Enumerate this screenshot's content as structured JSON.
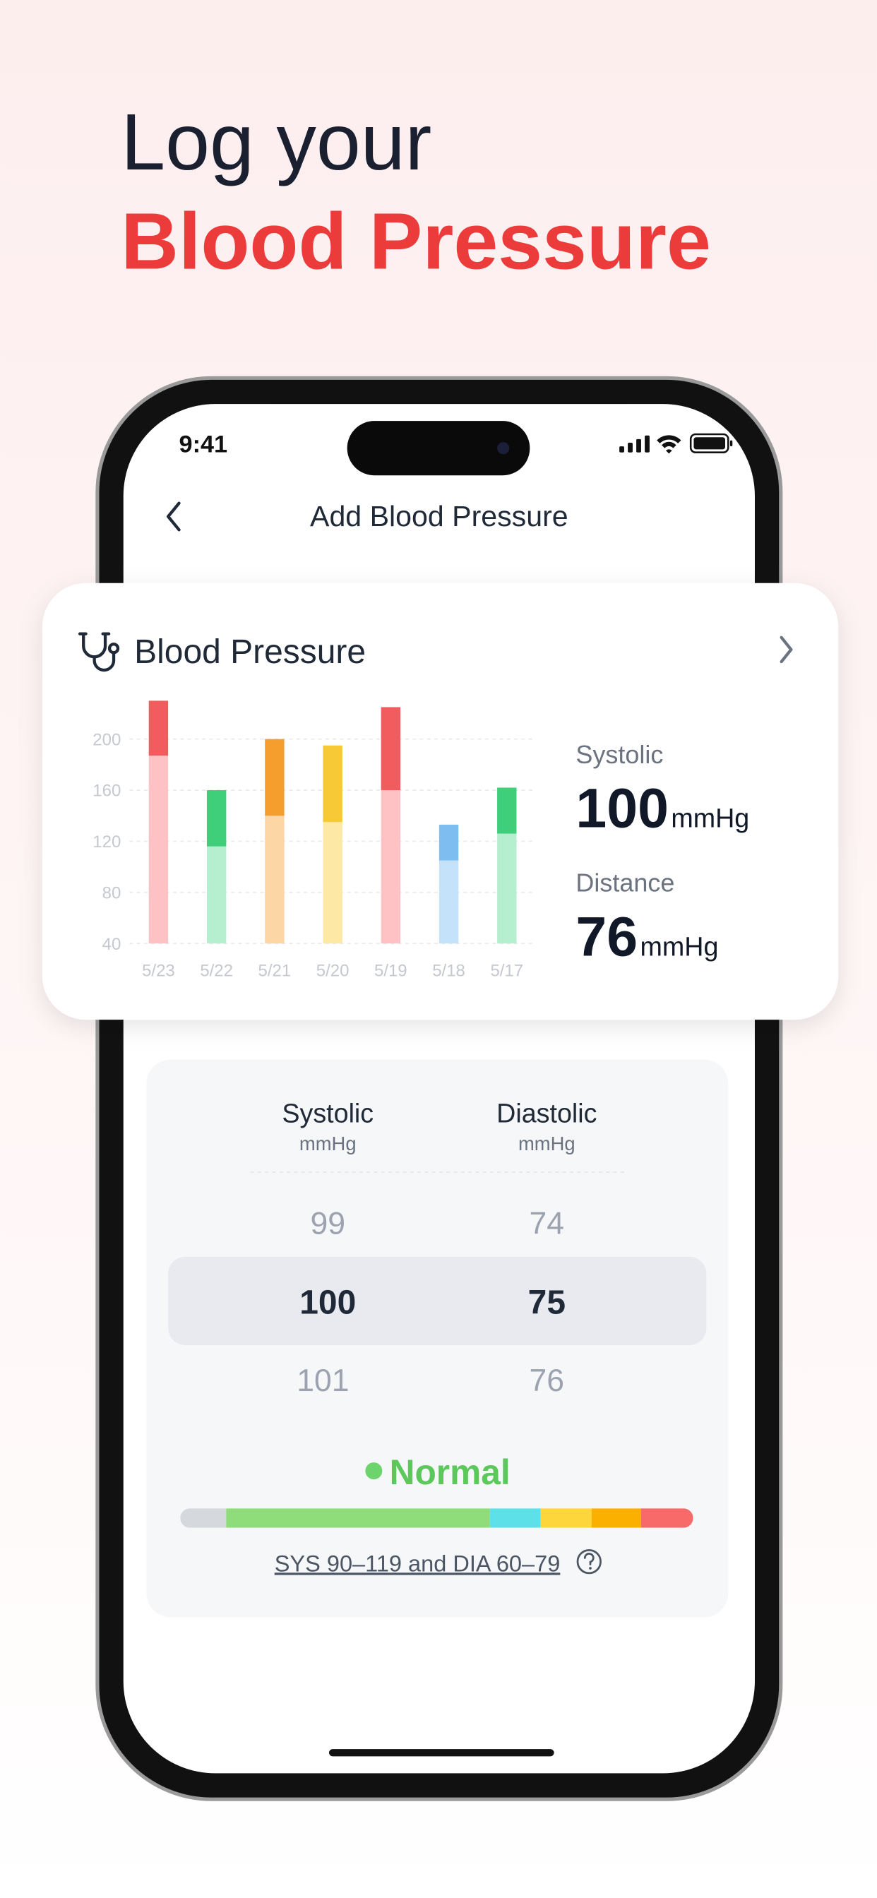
{
  "headline": {
    "line1": "Log your",
    "line2": "Blood Pressure"
  },
  "status_bar": {
    "time": "9:41"
  },
  "nav": {
    "title": "Add Blood Pressure"
  },
  "card": {
    "title": "Blood Pressure",
    "chart": {
      "type": "bar",
      "categories": [
        "5/23",
        "5/22",
        "5/21",
        "5/20",
        "5/19",
        "5/18",
        "5/17"
      ],
      "ylim": [
        40,
        200
      ],
      "yticks": [
        40,
        80,
        120,
        160,
        200
      ],
      "grid": true,
      "series": [
        {
          "values": [
            147,
            76,
            100,
            95,
            120,
            65,
            86
          ],
          "colors": [
            "#ffc2c4",
            "#b6eed0",
            "#fdd6a6",
            "#fde8a6",
            "#ffc2c4",
            "#c4e2fa",
            "#b6eed0"
          ]
        },
        {
          "values": [
            43,
            44,
            60,
            60,
            65,
            28,
            36
          ],
          "colors": [
            "#f25c5f",
            "#3fcf7a",
            "#f59e2e",
            "#f7c936",
            "#f25c5f",
            "#7dbdf0",
            "#3fcf7a"
          ]
        }
      ]
    },
    "stats": [
      {
        "label": "Systolic",
        "value": 100,
        "unit": "mmHg"
      },
      {
        "label": "Distance",
        "value": 76,
        "unit": "mmHg"
      }
    ]
  },
  "picker": {
    "columns": [
      {
        "label": "Systolic",
        "unit": "mmHg",
        "values": [
          99,
          100,
          101
        ]
      },
      {
        "label": "Diastolic",
        "unit": "mmHg",
        "values": [
          74,
          75,
          76
        ]
      }
    ],
    "status": "Normal",
    "range_text": "SYS 90–119 and DIA 60–79"
  }
}
